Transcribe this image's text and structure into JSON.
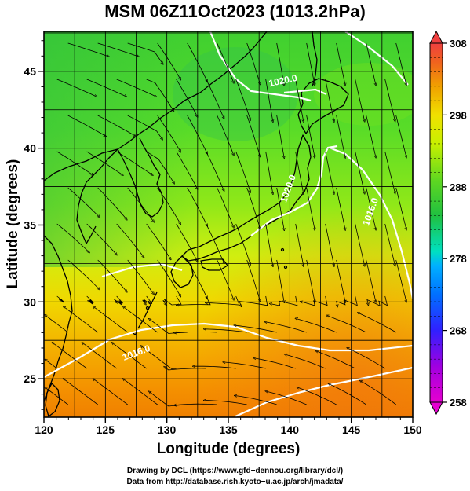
{
  "title": "MSM 06Z11Oct2023 (1013.2hPa)",
  "x_axis": {
    "label": "Longitude (degrees)",
    "range": [
      120,
      150
    ],
    "ticks": [
      120,
      125,
      130,
      135,
      140,
      145,
      150
    ]
  },
  "y_axis": {
    "label": "Latitude (degrees)",
    "range": [
      22.5,
      47.6
    ],
    "ticks": [
      25,
      30,
      35,
      40,
      45
    ]
  },
  "colorbar": {
    "range": [
      258,
      308
    ],
    "ticks": [
      258,
      268,
      278,
      288,
      298,
      308
    ],
    "colors": [
      "#e600d0",
      "#a000e0",
      "#3020ff",
      "#00a0ff",
      "#00e0c0",
      "#20c040",
      "#70e020",
      "#d8f000",
      "#f0e000",
      "#f0a000",
      "#f06020",
      "#f04040"
    ]
  },
  "contours": [
    {
      "label": "1020.0",
      "lon": 139.5,
      "lat": 44.2
    },
    {
      "label": "1020.0",
      "lon": 140.1,
      "lat": 37.3
    },
    {
      "label": "1016.0",
      "lon": 146.8,
      "lat": 35.8
    },
    {
      "label": "1016.0",
      "lon": 127.6,
      "lat": 26.5
    }
  ],
  "footer": {
    "line1": "Drawing by DCL (https://www.gfd−dennou.org/library/dcl/)",
    "line2": "Data from http://database.rish.kyoto−u.ac.jp/arch/jmadata/"
  }
}
